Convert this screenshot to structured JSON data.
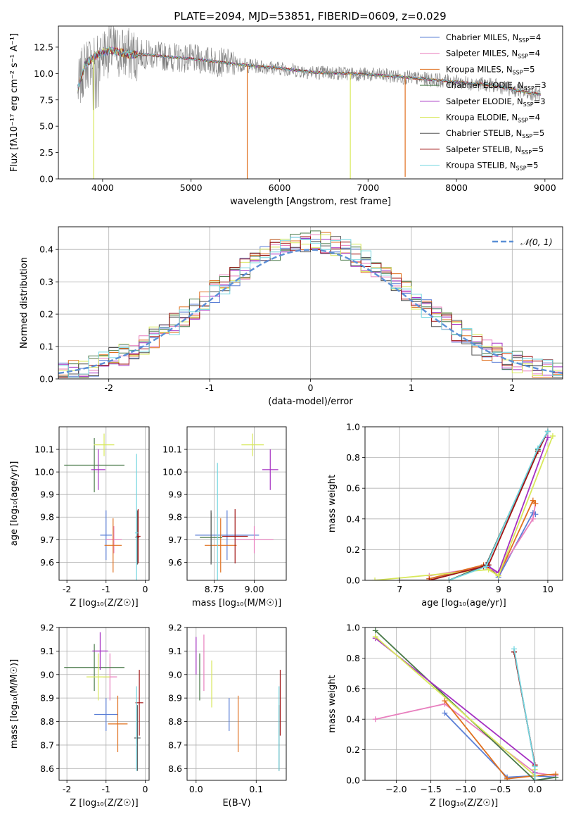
{
  "figure": {
    "title": "PLATE=2094, MJD=53851, FIBERID=0609, z=0.029"
  },
  "colors": {
    "chabrier_miles": "#5b7fd6",
    "salpeter_miles": "#e87fbe",
    "kroupa_miles": "#e0701f",
    "chabrier_elodie": "#4a7a4a",
    "salpeter_elodie": "#a530c2",
    "kroupa_elodie": "#d8e85a",
    "chabrier_stelib": "#555555",
    "salpeter_stelib": "#a11515",
    "kroupa_stelib": "#73d6e0",
    "data": "#808080",
    "normal": "#5b8fd6",
    "grid": "#b0b0b0"
  },
  "chart_data": [
    {
      "id": "spectrum",
      "type": "line",
      "xlabel": "wavelength [Angstrom, rest frame]",
      "ylabel": "Flux [fλ10⁻¹⁷ erg cm⁻² s⁻¹ A⁻¹]",
      "xlim": [
        3500,
        9200
      ],
      "ylim": [
        0,
        14.5
      ],
      "xticks": [
        4000,
        5000,
        6000,
        7000,
        8000,
        9000
      ],
      "yticks": [
        0.0,
        2.5,
        5.0,
        7.5,
        10.0,
        12.5
      ],
      "ytick_labels": [
        "0.0",
        "2.5",
        "5.0",
        "7.5",
        "10.0",
        "12.5"
      ],
      "grid": false,
      "legend_position": "top-right",
      "legend": [
        {
          "label": "Chabrier MILES, N",
          "sub": "SSP",
          "suffix": "=4",
          "color_key": "chabrier_miles"
        },
        {
          "label": "Salpeter MILES, N",
          "sub": "SSP",
          "suffix": "=4",
          "color_key": "salpeter_miles"
        },
        {
          "label": "Kroupa MILES, N",
          "sub": "SSP",
          "suffix": "=5",
          "color_key": "kroupa_miles"
        },
        {
          "label": "Chabrier ELODIE, N",
          "sub": "SSP",
          "suffix": "=3",
          "color_key": "chabrier_elodie"
        },
        {
          "label": "Salpeter ELODIE, N",
          "sub": "SSP",
          "suffix": "=3",
          "color_key": "salpeter_elodie"
        },
        {
          "label": "Kroupa ELODIE, N",
          "sub": "SSP",
          "suffix": "=4",
          "color_key": "kroupa_elodie"
        },
        {
          "label": "Chabrier STELIB, N",
          "sub": "SSP",
          "suffix": "=5",
          "color_key": "chabrier_stelib"
        },
        {
          "label": "Salpeter STELIB, N",
          "sub": "SSP",
          "suffix": "=5",
          "color_key": "salpeter_stelib"
        },
        {
          "label": "Kroupa STELIB, N",
          "sub": "SSP",
          "suffix": "=5",
          "color_key": "kroupa_stelib"
        }
      ],
      "continuum": {
        "x": [
          3720,
          3800,
          3900,
          4000,
          4100,
          4200,
          4300,
          4500,
          4700,
          5000,
          5300,
          5600,
          6000,
          6400,
          6800,
          7200,
          7600,
          8000,
          8400,
          8800,
          8950
        ],
        "y": [
          8.5,
          10.8,
          11.6,
          12.0,
          12.2,
          12.0,
          11.8,
          11.8,
          11.6,
          11.4,
          11.1,
          10.8,
          10.5,
          10.1,
          10.0,
          9.8,
          9.5,
          9.2,
          8.9,
          8.2,
          8.0
        ]
      },
      "spikes": [
        {
          "x": 3900,
          "y": 0.0,
          "color_key": "kroupa_elodie"
        },
        {
          "x": 5635,
          "y": 0.0,
          "color_key": "kroupa_miles"
        },
        {
          "x": 6800,
          "y": 0.0,
          "color_key": "kroupa_elodie"
        },
        {
          "x": 7420,
          "y": 0.2,
          "color_key": "kroupa_miles"
        }
      ]
    },
    {
      "id": "residuals",
      "type": "histogram",
      "xlabel": "(data-model)/error",
      "ylabel": "Normed distribution",
      "xlim": [
        -2.5,
        2.5
      ],
      "ylim": [
        0,
        0.47
      ],
      "xticks": [
        -2,
        -1,
        0,
        1,
        2
      ],
      "yticks": [
        0.0,
        0.1,
        0.2,
        0.3,
        0.4
      ],
      "ytick_labels": [
        "0.0",
        "0.1",
        "0.2",
        "0.3",
        "0.4"
      ],
      "grid": true,
      "legend_position": "top-right",
      "legend": [
        {
          "label": "𝒩(0, 1)",
          "color_key": "normal",
          "style": "dashed"
        }
      ],
      "bin_width": 0.1
    },
    {
      "id": "age_vs_Z",
      "type": "errorbar",
      "xlabel": "Z [log₁₀(Z/Z☉)]",
      "ylabel": "age [log₁₀(age/yr)]",
      "xlim": [
        -2.2,
        0.1
      ],
      "ylim": [
        9.52,
        10.2
      ],
      "xticks": [
        -2,
        -1,
        0
      ],
      "yticks": [
        9.6,
        9.7,
        9.8,
        9.9,
        10.0,
        10.1
      ],
      "ytick_labels": [
        "9.6",
        "9.7",
        "9.8",
        "9.9",
        "10.0",
        "10.1"
      ],
      "grid": true,
      "points": [
        {
          "color_key": "chabrier_miles",
          "x": -1.0,
          "y": 9.72,
          "xerr": 0.15,
          "yerr": 0.11
        },
        {
          "color_key": "salpeter_miles",
          "x": -0.8,
          "y": 9.7,
          "xerr": 0.2,
          "yerr": 0.06
        },
        {
          "color_key": "kroupa_miles",
          "x": -0.82,
          "y": 9.675,
          "xerr": 0.22,
          "yerr": 0.12
        },
        {
          "color_key": "chabrier_elodie",
          "x": -1.3,
          "y": 10.03,
          "xerr": 0.77,
          "yerr": 0.12
        },
        {
          "color_key": "salpeter_elodie",
          "x": -1.2,
          "y": 10.01,
          "xerr": 0.18,
          "yerr": 0.09
        },
        {
          "color_key": "kroupa_elodie",
          "x": -1.05,
          "y": 10.12,
          "xerr": 0.26,
          "yerr": 0.05
        },
        {
          "color_key": "chabrier_stelib",
          "x": -0.2,
          "y": 9.71,
          "xerr": 0.05,
          "yerr": 0.12
        },
        {
          "color_key": "salpeter_stelib",
          "x": -0.18,
          "y": 9.715,
          "xerr": 0.06,
          "yerr": 0.12
        },
        {
          "color_key": "kroupa_stelib",
          "x": -0.22,
          "y": 9.73,
          "xerr": 0.04,
          "yerr": 0.35
        }
      ]
    },
    {
      "id": "age_vs_mass",
      "type": "errorbar",
      "xlabel": "mass [log₁₀(M/M☉)]",
      "ylabel": "",
      "xlim": [
        8.58,
        9.2
      ],
      "ylim": [
        9.52,
        10.2
      ],
      "xticks": [
        8.75,
        9.0
      ],
      "yticks": [
        9.6,
        9.7,
        9.8,
        9.9,
        10.0,
        10.1
      ],
      "xtick_labels": [
        "8.75",
        "9.00"
      ],
      "ytick_labels": [
        "9.6",
        "9.7",
        "9.8",
        "9.9",
        "10.0",
        "10.1"
      ],
      "grid": true,
      "points": [
        {
          "color_key": "chabrier_miles",
          "x": 8.83,
          "y": 9.72,
          "xerr": 0.2,
          "yerr": 0.11
        },
        {
          "color_key": "salpeter_miles",
          "x": 9.0,
          "y": 9.7,
          "xerr": 0.12,
          "yerr": 0.06
        },
        {
          "color_key": "kroupa_miles",
          "x": 8.79,
          "y": 9.675,
          "xerr": 0.1,
          "yerr": 0.12
        },
        {
          "color_key": "chabrier_elodie",
          "x": 8.73,
          "y": 9.71,
          "xerr": 0.07,
          "yerr": 0.11
        },
        {
          "color_key": "salpeter_elodie",
          "x": 9.1,
          "y": 10.01,
          "xerr": 0.05,
          "yerr": 0.09
        },
        {
          "color_key": "kroupa_elodie",
          "x": 8.99,
          "y": 10.12,
          "xerr": 0.07,
          "yerr": 0.05
        },
        {
          "color_key": "chabrier_stelib",
          "x": 8.73,
          "y": 9.71,
          "xerr": 0.0,
          "yerr": 0.12
        },
        {
          "color_key": "salpeter_stelib",
          "x": 8.88,
          "y": 9.715,
          "xerr": 0.08,
          "yerr": 0.12
        },
        {
          "color_key": "kroupa_stelib",
          "x": 8.77,
          "y": 9.73,
          "xerr": 0.0,
          "yerr": 0.31
        }
      ]
    },
    {
      "id": "mass_weight_vs_age",
      "type": "line",
      "xlabel": "age [log₁₀(age/yr)]",
      "ylabel": "mass weight",
      "xlim": [
        6.3,
        10.3
      ],
      "ylim": [
        0,
        1.0
      ],
      "xticks": [
        7,
        8,
        9,
        10
      ],
      "yticks": [
        0.0,
        0.2,
        0.4,
        0.6,
        0.8,
        1.0
      ],
      "ytick_labels": [
        "0.0",
        "0.2",
        "0.4",
        "0.6",
        "0.8",
        "1.0"
      ],
      "grid": true,
      "series": [
        {
          "color_key": "chabrier_miles",
          "x": [
            7.6,
            8.8,
            9.0,
            9.7,
            9.75
          ],
          "y": [
            0.01,
            0.1,
            0.02,
            0.44,
            0.43
          ]
        },
        {
          "color_key": "salpeter_miles",
          "x": [
            7.6,
            8.75,
            9.0,
            9.7,
            9.75
          ],
          "y": [
            0.03,
            0.09,
            0.05,
            0.4,
            0.5
          ]
        },
        {
          "color_key": "kroupa_miles",
          "x": [
            7.6,
            8.7,
            9.0,
            9.7,
            9.75
          ],
          "y": [
            0.01,
            0.1,
            0.03,
            0.52,
            0.5
          ]
        },
        {
          "color_key": "chabrier_elodie",
          "x": [
            8.0,
            8.75,
            9.8
          ],
          "y": [
            0.0,
            0.1,
            0.85
          ]
        },
        {
          "color_key": "salpeter_elodie",
          "x": [
            8.75,
            9.0,
            10.0
          ],
          "y": [
            0.1,
            0.05,
            0.93
          ]
        },
        {
          "color_key": "kroupa_elodie",
          "x": [
            6.5,
            8.8,
            9.0,
            10.1
          ],
          "y": [
            0.0,
            0.07,
            0.03,
            0.94
          ]
        },
        {
          "color_key": "chabrier_stelib",
          "x": [
            7.0,
            8.0,
            8.75,
            9.8,
            10.0
          ],
          "y": [
            0.0,
            0.0,
            0.1,
            0.84,
            0.97
          ]
        },
        {
          "color_key": "salpeter_stelib",
          "x": [
            7.6,
            8.7,
            8.8,
            9.8,
            10.0
          ],
          "y": [
            0.0,
            0.09,
            0.1,
            0.84,
            0.97
          ]
        },
        {
          "color_key": "kroupa_stelib",
          "x": [
            8.0,
            8.75,
            9.8,
            10.0
          ],
          "y": [
            0.0,
            0.09,
            0.86,
            0.97
          ]
        }
      ]
    },
    {
      "id": "mass_vs_Z",
      "type": "errorbar",
      "xlabel": "Z [log₁₀(Z/Z☉)]",
      "ylabel": "mass [log₁₀(M/M☉)]",
      "xlim": [
        -2.2,
        0.1
      ],
      "ylim": [
        8.55,
        9.2
      ],
      "xticks": [
        -2,
        -1,
        0
      ],
      "yticks": [
        8.6,
        8.7,
        8.8,
        8.9,
        9.0,
        9.1,
        9.2
      ],
      "ytick_labels": [
        "8.6",
        "8.7",
        "8.8",
        "8.9",
        "9.0",
        "9.1",
        "9.2"
      ],
      "grid": true,
      "points": [
        {
          "color_key": "chabrier_miles",
          "x": -1.0,
          "y": 8.83,
          "xerr": 0.3,
          "yerr": 0.07
        },
        {
          "color_key": "salpeter_miles",
          "x": -0.9,
          "y": 8.99,
          "xerr": 0.18,
          "yerr": 0.1
        },
        {
          "color_key": "kroupa_miles",
          "x": -0.7,
          "y": 8.79,
          "xerr": 0.25,
          "yerr": 0.12
        },
        {
          "color_key": "chabrier_elodie",
          "x": -1.3,
          "y": 9.03,
          "xerr": 0.77,
          "yerr": 0.1
        },
        {
          "color_key": "salpeter_elodie",
          "x": -1.15,
          "y": 9.1,
          "xerr": 0.2,
          "yerr": 0.08
        },
        {
          "color_key": "kroupa_elodie",
          "x": -1.2,
          "y": 8.99,
          "xerr": 0.3,
          "yerr": 0.1
        },
        {
          "color_key": "chabrier_stelib",
          "x": -0.2,
          "y": 8.73,
          "xerr": 0.08,
          "yerr": 0.14
        },
        {
          "color_key": "salpeter_stelib",
          "x": -0.15,
          "y": 8.88,
          "xerr": 0.1,
          "yerr": 0.14
        },
        {
          "color_key": "kroupa_stelib",
          "x": -0.22,
          "y": 8.77,
          "xerr": 0.0,
          "yerr": 0.18
        }
      ]
    },
    {
      "id": "mass_vs_ebv",
      "type": "errorbar",
      "xlabel": "E(B-V)",
      "ylabel": "",
      "xlim": [
        -0.015,
        0.15
      ],
      "ylim": [
        8.55,
        9.2
      ],
      "xticks": [
        0.0,
        0.1
      ],
      "xtick_labels": [
        "0.0",
        "0.1"
      ],
      "yticks": [
        8.6,
        8.7,
        8.8,
        8.9,
        9.0,
        9.1,
        9.2
      ],
      "ytick_labels": [
        "8.6",
        "8.7",
        "8.8",
        "8.9",
        "9.0",
        "9.1",
        "9.2"
      ],
      "grid": true,
      "points": [
        {
          "color_key": "chabrier_miles",
          "x": 0.055,
          "y": 8.83,
          "xerr": 0.0,
          "yerr": 0.07
        },
        {
          "color_key": "salpeter_miles",
          "x": 0.013,
          "y": 9.05,
          "xerr": 0.0,
          "yerr": 0.12
        },
        {
          "color_key": "kroupa_miles",
          "x": 0.07,
          "y": 8.79,
          "xerr": 0.0,
          "yerr": 0.12
        },
        {
          "color_key": "chabrier_elodie",
          "x": 0.006,
          "y": 8.99,
          "xerr": 0.0,
          "yerr": 0.1
        },
        {
          "color_key": "salpeter_elodie",
          "x": 0.0,
          "y": 9.08,
          "xerr": 0.0,
          "yerr": 0.08
        },
        {
          "color_key": "kroupa_elodie",
          "x": 0.026,
          "y": 8.96,
          "xerr": 0.0,
          "yerr": 0.1
        },
        {
          "color_key": "chabrier_stelib",
          "x": 0.138,
          "y": 8.73,
          "xerr": 0.0,
          "yerr": 0.14
        },
        {
          "color_key": "salpeter_stelib",
          "x": 0.14,
          "y": 8.88,
          "xerr": 0.0,
          "yerr": 0.14
        },
        {
          "color_key": "kroupa_stelib",
          "x": 0.138,
          "y": 8.77,
          "xerr": 0.0,
          "yerr": 0.18
        }
      ]
    },
    {
      "id": "mass_weight_vs_Z",
      "type": "line",
      "xlabel": "Z [log₁₀(Z/Z☉)]",
      "ylabel": "mass weight",
      "xlim": [
        -2.45,
        0.4
      ],
      "ylim": [
        0,
        1.0
      ],
      "xticks": [
        -2.0,
        -1.5,
        -1.0,
        -0.5,
        0.0
      ],
      "xtick_labels": [
        "−2.0",
        "−1.5",
        "−1.0",
        "−0.5",
        "0.0"
      ],
      "yticks": [
        0.0,
        0.2,
        0.4,
        0.6,
        0.8,
        1.0
      ],
      "ytick_labels": [
        "0.0",
        "0.2",
        "0.4",
        "0.6",
        "0.8",
        "1.0"
      ],
      "grid": true,
      "series": [
        {
          "color_key": "chabrier_miles",
          "x": [
            -1.3,
            -0.4,
            0.0,
            0.3
          ],
          "y": [
            0.44,
            0.02,
            0.03,
            0.02
          ]
        },
        {
          "color_key": "salpeter_miles",
          "x": [
            -2.3,
            -1.3,
            0.0,
            0.3
          ],
          "y": [
            0.4,
            0.5,
            0.05,
            0.03
          ]
        },
        {
          "color_key": "kroupa_miles",
          "x": [
            -1.3,
            -0.4,
            0.0,
            0.3
          ],
          "y": [
            0.52,
            0.01,
            0.03,
            0.04
          ]
        },
        {
          "color_key": "chabrier_elodie",
          "x": [
            -2.3,
            0.0,
            0.3
          ],
          "y": [
            0.98,
            0.0,
            0.02
          ]
        },
        {
          "color_key": "salpeter_elodie",
          "x": [
            -2.3,
            0.0,
            0.0
          ],
          "y": [
            0.93,
            0.1,
            0.05
          ]
        },
        {
          "color_key": "kroupa_elodie",
          "x": [
            -2.3,
            0.0,
            0.0
          ],
          "y": [
            0.94,
            0.03,
            0.07
          ]
        },
        {
          "color_key": "chabrier_stelib",
          "x": [
            -0.3,
            0.0,
            0.0
          ],
          "y": [
            0.84,
            0.1,
            0.0
          ]
        },
        {
          "color_key": "salpeter_stelib",
          "x": [
            -0.3,
            0.0,
            0.0
          ],
          "y": [
            0.84,
            0.1,
            0.0
          ]
        },
        {
          "color_key": "kroupa_stelib",
          "x": [
            -0.3,
            0.0,
            0.0
          ],
          "y": [
            0.86,
            0.09,
            0.0
          ]
        }
      ]
    }
  ]
}
